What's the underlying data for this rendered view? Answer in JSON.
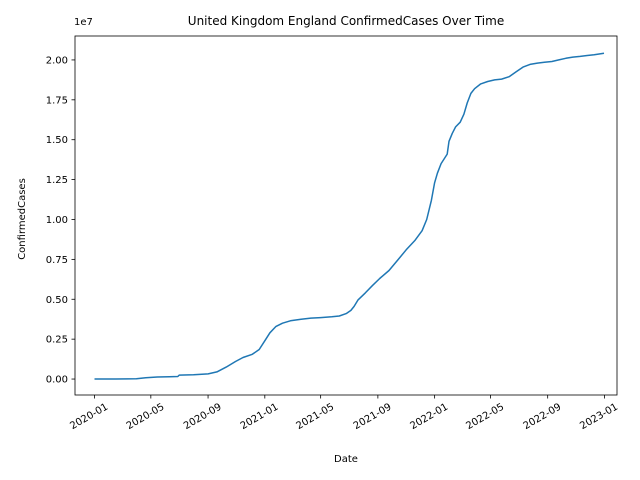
{
  "chart_data": {
    "type": "line",
    "title": "United Kingdom England ConfirmedCases Over Time",
    "xlabel": "Date",
    "ylabel": "ConfirmedCases",
    "y_offset_label": "1e7",
    "xlim": [
      "2019-11-20",
      "2023-01-28"
    ],
    "ylim": [
      -1.0,
      21.5
    ],
    "y_scale": "x1e7",
    "grid": false,
    "x_ticks": [
      "2020-01",
      "2020-05",
      "2020-09",
      "2021-01",
      "2021-05",
      "2021-09",
      "2022-01",
      "2022-05",
      "2022-09",
      "2023-01"
    ],
    "x_tick_dates": [
      "2020-01-01",
      "2020-05-01",
      "2020-09-01",
      "2021-01-01",
      "2021-05-01",
      "2021-09-01",
      "2022-01-01",
      "2022-05-01",
      "2022-09-01",
      "2023-01-01"
    ],
    "y_ticks": [
      "0.00",
      "0.25",
      "0.50",
      "0.75",
      "1.00",
      "1.25",
      "1.50",
      "1.75",
      "2.00"
    ],
    "y_tick_values": [
      0,
      2.5,
      5,
      7.5,
      10,
      12.5,
      15,
      17.5,
      20
    ],
    "line_color": "#1f77b4",
    "series": [
      {
        "x": [
          "2020-01-01",
          "2020-02-15",
          "2020-03-31",
          "2020-04-20",
          "2020-05-15",
          "2020-06-10",
          "2020-06-28",
          "2020-07-01",
          "2020-08-01",
          "2020-09-01",
          "2020-09-20",
          "2020-10-10",
          "2020-10-30",
          "2020-11-15",
          "2020-12-05",
          "2020-12-20",
          "2021-01-01",
          "2021-01-12",
          "2021-01-25",
          "2021-02-08",
          "2021-02-25",
          "2021-03-20",
          "2021-04-10",
          "2021-05-01",
          "2021-05-25",
          "2021-06-10",
          "2021-06-25",
          "2021-07-05",
          "2021-07-12",
          "2021-07-20",
          "2021-08-05",
          "2021-08-20",
          "2021-09-05",
          "2021-09-25",
          "2021-10-15",
          "2021-11-01",
          "2021-11-20",
          "2021-12-05",
          "2021-12-15",
          "2021-12-25",
          "2022-01-01",
          "2022-01-07",
          "2022-01-15",
          "2022-01-28",
          "2022-02-01",
          "2022-02-08",
          "2022-02-15",
          "2022-02-25",
          "2022-03-05",
          "2022-03-12",
          "2022-03-20",
          "2022-03-28",
          "2022-04-10",
          "2022-04-25",
          "2022-05-10",
          "2022-05-25",
          "2022-06-10",
          "2022-06-25",
          "2022-07-10",
          "2022-07-25",
          "2022-08-10",
          "2022-08-25",
          "2022-09-10",
          "2022-09-25",
          "2022-10-10",
          "2022-10-25",
          "2022-11-10",
          "2022-11-25",
          "2022-12-10",
          "2022-12-31"
        ],
        "y": [
          0.0,
          0.0,
          0.02,
          0.08,
          0.13,
          0.15,
          0.16,
          0.25,
          0.27,
          0.32,
          0.45,
          0.75,
          1.1,
          1.35,
          1.55,
          1.85,
          2.4,
          2.9,
          3.3,
          3.5,
          3.65,
          3.75,
          3.82,
          3.85,
          3.9,
          3.95,
          4.1,
          4.3,
          4.55,
          4.95,
          5.4,
          5.85,
          6.3,
          6.8,
          7.5,
          8.1,
          8.7,
          9.3,
          10.0,
          11.2,
          12.3,
          12.9,
          13.5,
          14.1,
          14.9,
          15.4,
          15.8,
          16.1,
          16.6,
          17.3,
          17.9,
          18.2,
          18.5,
          18.65,
          18.75,
          18.8,
          18.95,
          19.25,
          19.55,
          19.72,
          19.8,
          19.85,
          19.9,
          20.0,
          20.1,
          20.18,
          20.22,
          20.28,
          20.32,
          20.42
        ]
      }
    ]
  }
}
